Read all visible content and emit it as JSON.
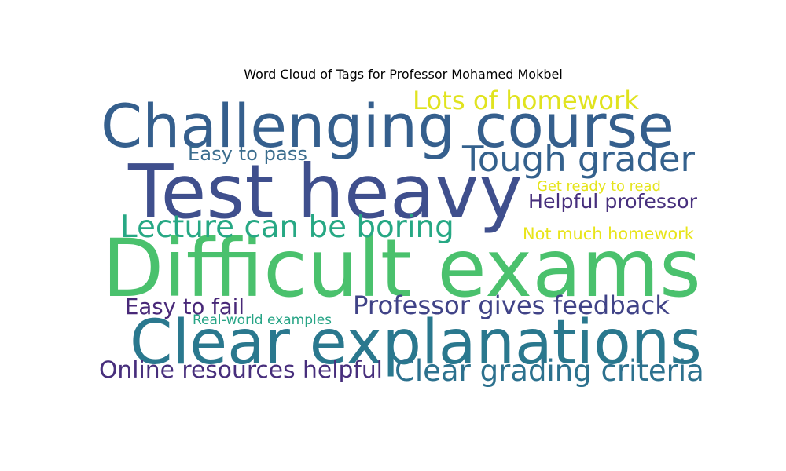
{
  "chart_data": {
    "type": "wordcloud",
    "title": "Word Cloud of Tags for Professor Mohamed Mokbel",
    "background": "#ffffff",
    "words": [
      {
        "text": "Test heavy",
        "weight": 1.0,
        "color": "#3f4f8d"
      },
      {
        "text": "Difficult exams",
        "weight": 0.9,
        "color": "#4ac16d"
      },
      {
        "text": "Challenging course",
        "weight": 0.8,
        "color": "#355f8d"
      },
      {
        "text": "Clear explanations",
        "weight": 0.85,
        "color": "#2a788e"
      },
      {
        "text": "Tough grader",
        "weight": 0.45,
        "color": "#34618d"
      },
      {
        "text": "Lots of homework",
        "weight": 0.35,
        "color": "#e0e31f"
      },
      {
        "text": "Lecture can be boring",
        "weight": 0.38,
        "color": "#27a884"
      },
      {
        "text": "Professor gives feedback",
        "weight": 0.32,
        "color": "#404387"
      },
      {
        "text": "Clear grading criteria",
        "weight": 0.38,
        "color": "#2c718e"
      },
      {
        "text": "Online resources helpful",
        "weight": 0.28,
        "color": "#472e7c"
      },
      {
        "text": "Easy to pass",
        "weight": 0.22,
        "color": "#3b6d8e"
      },
      {
        "text": "Helpful professor",
        "weight": 0.22,
        "color": "#472f7d"
      },
      {
        "text": "Not much homework",
        "weight": 0.22,
        "color": "#e8e419"
      },
      {
        "text": "Easy to fail",
        "weight": 0.22,
        "color": "#482878"
      },
      {
        "text": "Get ready to read",
        "weight": 0.15,
        "color": "#e5e419"
      },
      {
        "text": "Real-world examples",
        "weight": 0.15,
        "color": "#26a485"
      }
    ]
  }
}
